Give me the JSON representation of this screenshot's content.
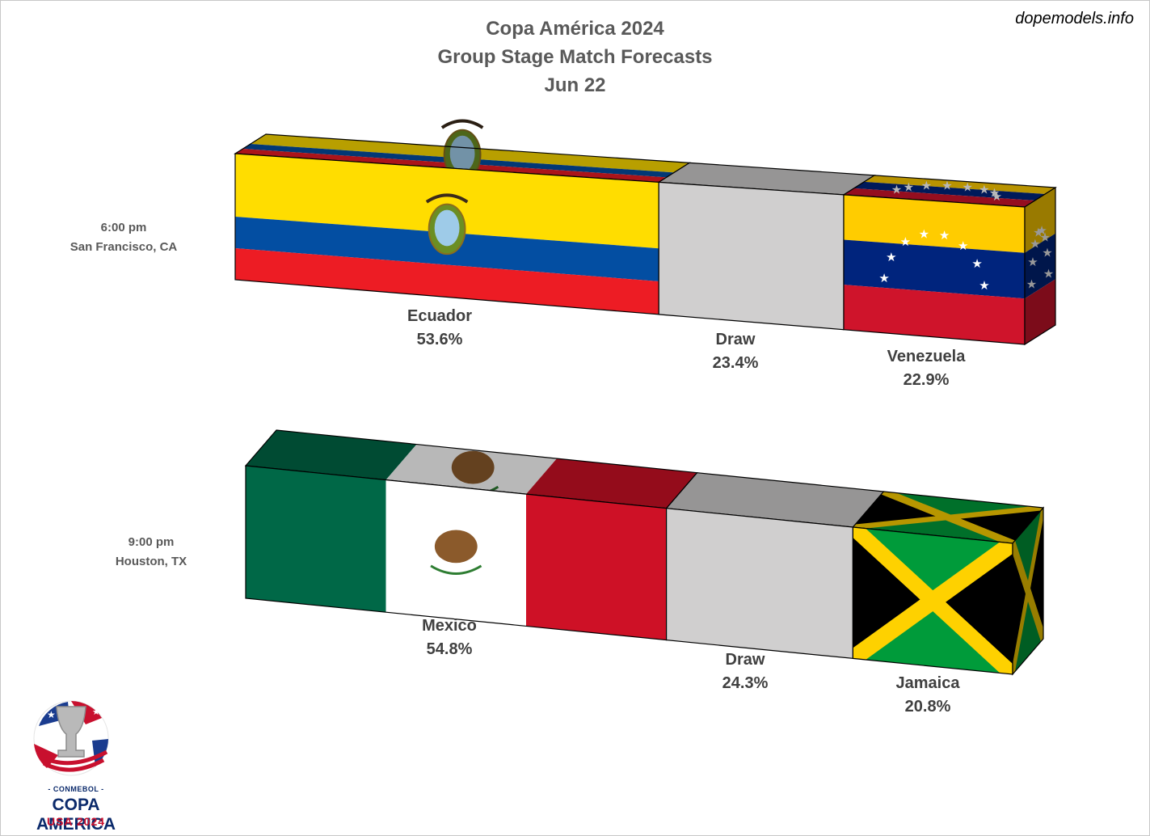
{
  "title": {
    "line1": "Copa América 2024",
    "line2": "Group Stage Match Forecasts",
    "line3": "Jun 22"
  },
  "credit": "dopemodels.info",
  "logo": {
    "small": "- CONMEBOL -",
    "main": "COPA AMERICA",
    "sub": "USA 2024"
  },
  "colors": {
    "ecuador": [
      "#ffdd00",
      "#034ea2",
      "#ed1c24"
    ],
    "venezuela": [
      "#ffcc00",
      "#00247d",
      "#cf142b"
    ],
    "mexico": [
      "#006847",
      "#ffffff",
      "#ce1126"
    ],
    "jamaica": [
      "#009b3a",
      "#fed100",
      "#000000"
    ],
    "draw": "#d0cfcf"
  },
  "chart_data": [
    {
      "type": "bar",
      "stacked": true,
      "time": "6:00 pm",
      "location": "San Francisco, CA",
      "categories": [
        "Ecuador",
        "Draw",
        "Venezuela"
      ],
      "values": [
        53.6,
        23.4,
        22.9
      ],
      "labels": [
        "53.6%",
        "23.4%",
        "22.9%"
      ]
    },
    {
      "type": "bar",
      "stacked": true,
      "time": "9:00 pm",
      "location": "Houston, TX",
      "categories": [
        "Mexico",
        "Draw",
        "Jamaica"
      ],
      "values": [
        54.8,
        24.3,
        20.8
      ],
      "labels": [
        "54.8%",
        "24.3%",
        "20.8%"
      ]
    }
  ]
}
